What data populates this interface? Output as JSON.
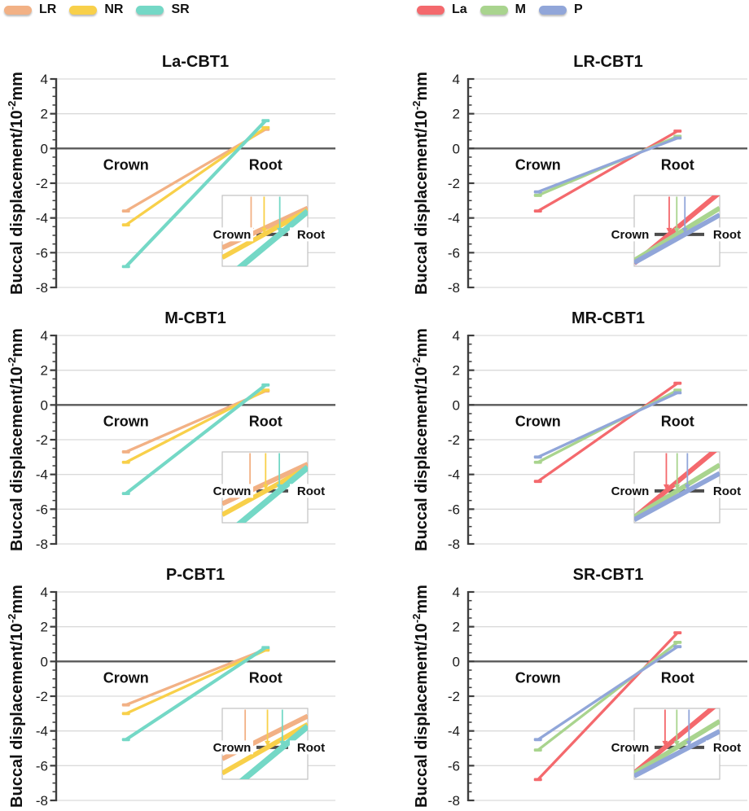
{
  "legends": {
    "left": {
      "items": [
        {
          "label": "LR",
          "color": "#F2B185"
        },
        {
          "label": "NR",
          "color": "#F8D04A"
        },
        {
          "label": "SR",
          "color": "#74D8C6"
        }
      ]
    },
    "right": {
      "items": [
        {
          "label": "La",
          "color": "#F4696D"
        },
        {
          "label": "M",
          "color": "#A9D48E"
        },
        {
          "label": "P",
          "color": "#91A6D9"
        }
      ]
    }
  },
  "ylabel": {
    "prefix": "Buccal displacement/10",
    "superscript": "-2",
    "suffix": "mm"
  },
  "chart_data": [
    {
      "type": "line",
      "title": "La-CBT1",
      "categories": [
        "Crown",
        "Root"
      ],
      "ylim": [
        -8,
        4
      ],
      "yticks": [
        4,
        2,
        0,
        -2,
        -4,
        -6,
        -8
      ],
      "ytick_step": 2,
      "ytick_minor": 0.5,
      "grid": true,
      "inset": true,
      "series": [
        {
          "name": "LR",
          "color": "#F2B185",
          "values": [
            -3.6,
            1.1
          ]
        },
        {
          "name": "NR",
          "color": "#F8D04A",
          "values": [
            -4.4,
            1.2
          ]
        },
        {
          "name": "SR",
          "color": "#74D8C6",
          "values": [
            -6.8,
            1.6
          ],
          "thick": true
        }
      ]
    },
    {
      "type": "line",
      "title": "LR-CBT1",
      "categories": [
        "Crown",
        "Root"
      ],
      "ylim": [
        -8,
        4
      ],
      "yticks": [
        4,
        2,
        0,
        -2,
        -4,
        -6,
        -8
      ],
      "ytick_step": 2,
      "ytick_minor": 0.5,
      "grid": true,
      "inset": true,
      "series": [
        {
          "name": "La",
          "color": "#F4696D",
          "values": [
            -3.6,
            1.0
          ]
        },
        {
          "name": "M",
          "color": "#A9D48E",
          "values": [
            -2.7,
            0.7
          ]
        },
        {
          "name": "P",
          "color": "#91A6D9",
          "values": [
            -2.5,
            0.6
          ]
        }
      ]
    },
    {
      "type": "line",
      "title": "M-CBT1",
      "categories": [
        "Crown",
        "Root"
      ],
      "ylim": [
        -8,
        4
      ],
      "yticks": [
        4,
        2,
        0,
        -2,
        -4,
        -6,
        -8
      ],
      "ytick_step": 2,
      "ytick_minor": 0.5,
      "grid": true,
      "inset": true,
      "series": [
        {
          "name": "LR",
          "color": "#F2B185",
          "values": [
            -2.7,
            0.8
          ]
        },
        {
          "name": "NR",
          "color": "#F8D04A",
          "values": [
            -3.3,
            0.85
          ]
        },
        {
          "name": "SR",
          "color": "#74D8C6",
          "values": [
            -5.1,
            1.15
          ],
          "thick": true
        }
      ]
    },
    {
      "type": "line",
      "title": "MR-CBT1",
      "categories": [
        "Crown",
        "Root"
      ],
      "ylim": [
        -8,
        4
      ],
      "yticks": [
        4,
        2,
        0,
        -2,
        -4,
        -6,
        -8
      ],
      "ytick_step": 2,
      "ytick_minor": 0.5,
      "grid": true,
      "inset": true,
      "series": [
        {
          "name": "La",
          "color": "#F4696D",
          "values": [
            -4.4,
            1.25
          ]
        },
        {
          "name": "M",
          "color": "#A9D48E",
          "values": [
            -3.3,
            0.85
          ]
        },
        {
          "name": "P",
          "color": "#91A6D9",
          "values": [
            -3.0,
            0.7
          ]
        }
      ]
    },
    {
      "type": "line",
      "title": "P-CBT1",
      "categories": [
        "Crown",
        "Root"
      ],
      "ylim": [
        -8,
        4
      ],
      "yticks": [
        4,
        2,
        0,
        -2,
        -4,
        -6,
        -8
      ],
      "ytick_step": 2,
      "ytick_minor": 0.5,
      "grid": true,
      "inset": true,
      "series": [
        {
          "name": "LR",
          "color": "#F2B185",
          "values": [
            -2.5,
            0.7
          ]
        },
        {
          "name": "NR",
          "color": "#F8D04A",
          "values": [
            -3.0,
            0.65
          ]
        },
        {
          "name": "SR",
          "color": "#74D8C6",
          "values": [
            -4.5,
            0.8
          ],
          "thick": true
        }
      ]
    },
    {
      "type": "line",
      "title": "SR-CBT1",
      "categories": [
        "Crown",
        "Root"
      ],
      "ylim": [
        -8,
        4
      ],
      "yticks": [
        4,
        2,
        0,
        -2,
        -4,
        -6,
        -8
      ],
      "ytick_step": 2,
      "ytick_minor": 0.5,
      "grid": true,
      "inset": true,
      "series": [
        {
          "name": "La",
          "color": "#F4696D",
          "values": [
            -6.8,
            1.65
          ]
        },
        {
          "name": "M",
          "color": "#A9D48E",
          "values": [
            -5.1,
            1.1
          ]
        },
        {
          "name": "P",
          "color": "#91A6D9",
          "values": [
            -4.5,
            0.85
          ]
        }
      ]
    }
  ],
  "colors": {
    "grid": "#DADADA",
    "zero_line": "#595959",
    "axis": "#3E3E3E",
    "inset_border": "#C2C2C2",
    "inset_axis": "#4D4D4D",
    "text": "#111111"
  }
}
